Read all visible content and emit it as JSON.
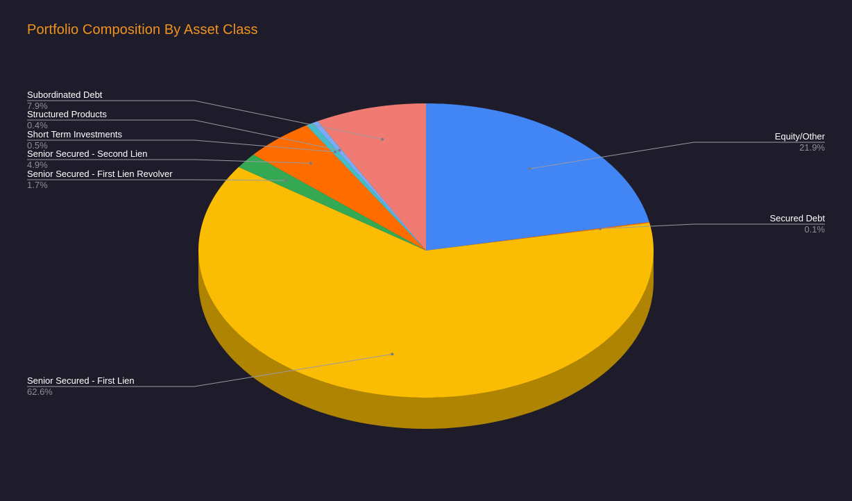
{
  "chart_data": {
    "type": "pie",
    "title": "Portfolio Composition By Asset Class",
    "three_d": true,
    "start_angle_deg": 0,
    "direction": "clockwise",
    "title_color": "#f0921e",
    "background": "#1e1c2a",
    "slices": [
      {
        "label": "Equity/Other",
        "percent_label": "21.9%",
        "value": 21.9,
        "color": "#4285f4"
      },
      {
        "label": "Secured Debt",
        "percent_label": "0.1%",
        "value": 0.1,
        "color": "#ff6d01"
      },
      {
        "label": "Senior Secured - First Lien",
        "percent_label": "62.6%",
        "value": 62.6,
        "color": "#fbbc04"
      },
      {
        "label": "Senior Secured - First Lien Revolver",
        "percent_label": "1.7%",
        "value": 1.7,
        "color": "#34a853"
      },
      {
        "label": "Senior Secured - Second Lien",
        "percent_label": "4.9%",
        "value": 4.9,
        "color": "#ff6d01"
      },
      {
        "label": "Short Term Investments",
        "percent_label": "0.5%",
        "value": 0.5,
        "color": "#46bdc6"
      },
      {
        "label": "Structured Products",
        "percent_label": "0.4%",
        "value": 0.4,
        "color": "#7baaf7"
      },
      {
        "label": "Subordinated Debt",
        "percent_label": "7.9%",
        "value": 7.9,
        "color": "#f07b72"
      }
    ]
  }
}
